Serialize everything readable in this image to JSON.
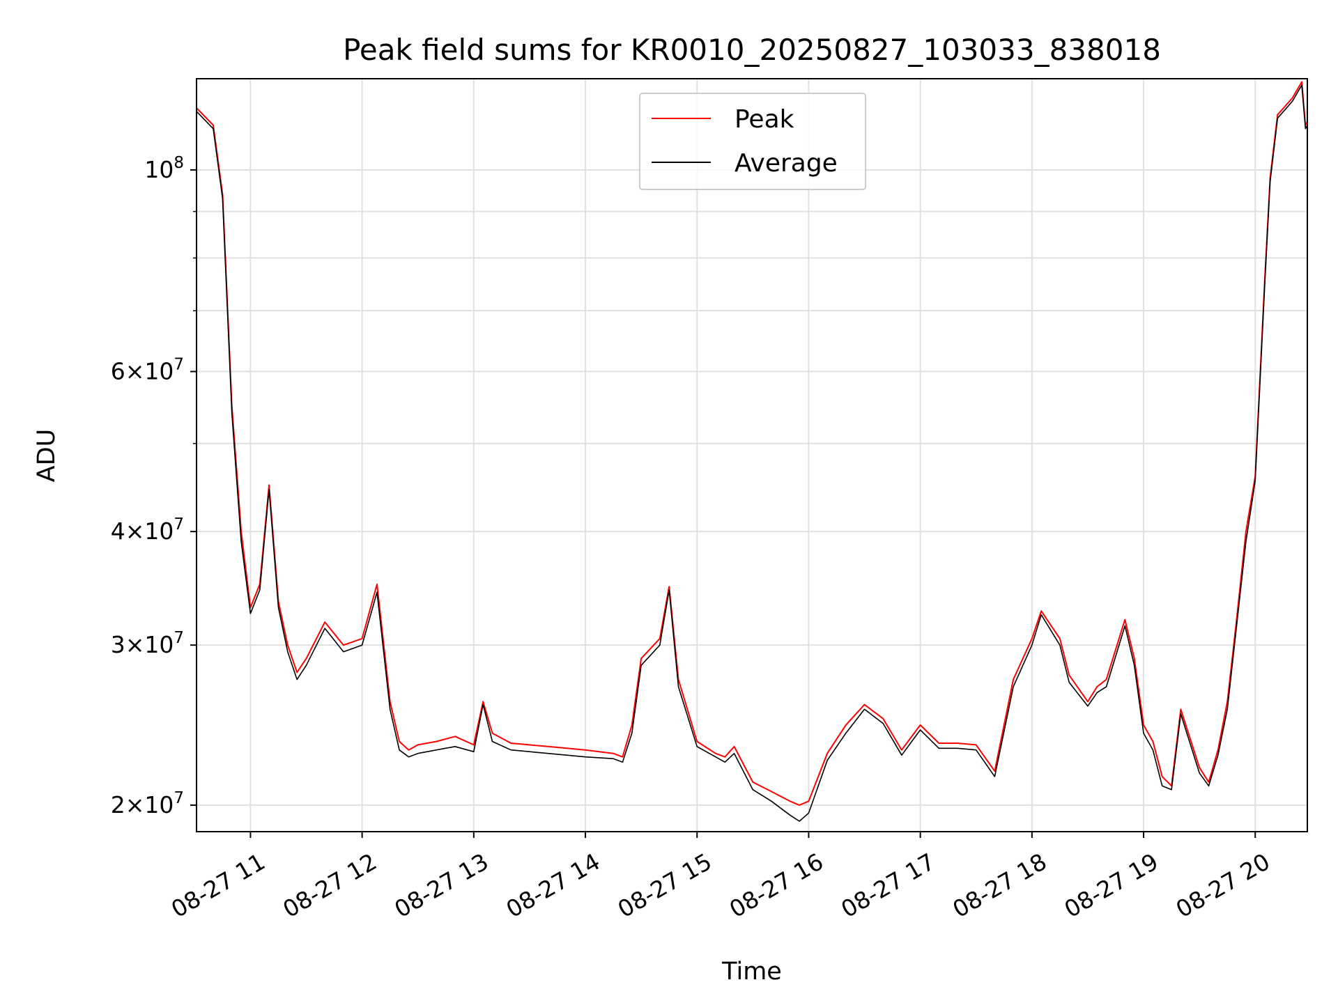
{
  "chart_data": {
    "type": "line",
    "title": "Peak field sums for KR0010_20250827_103033_838018",
    "xlabel": "Time",
    "ylabel": "ADU",
    "yscale": "log",
    "xlim": [
      "2025-08-27 10:31",
      "2025-08-27 20:28"
    ],
    "ylim": [
      18700000,
      126000000
    ],
    "grid": true,
    "legend_position": "top-center",
    "x_ticks": [
      "2025-08-27 11:00",
      "2025-08-27 12:00",
      "2025-08-27 13:00",
      "2025-08-27 14:00",
      "2025-08-27 15:00",
      "2025-08-27 16:00",
      "2025-08-27 17:00",
      "2025-08-27 18:00",
      "2025-08-27 19:00",
      "2025-08-27 20:00"
    ],
    "x_tick_labels": [
      "08-27 11",
      "08-27 12",
      "08-27 13",
      "08-27 14",
      "08-27 15",
      "08-27 16",
      "08-27 17",
      "08-27 18",
      "08-27 19",
      "08-27 20"
    ],
    "y_ticks": [
      20000000,
      30000000,
      40000000,
      60000000,
      100000000
    ],
    "y_tick_labels": [
      {
        "mant": "2",
        "exp": "7"
      },
      {
        "mant": "3",
        "exp": "7"
      },
      {
        "mant": "4",
        "exp": "7"
      },
      {
        "mant": "6",
        "exp": "7"
      },
      {
        "mant": "",
        "exp": "8"
      }
    ],
    "y_minor_ticks": [
      50000000,
      70000000,
      80000000,
      90000000
    ],
    "times": [
      "2025-08-27 10:31",
      "2025-08-27 10:40",
      "2025-08-27 10:45",
      "2025-08-27 10:50",
      "2025-08-27 10:55",
      "2025-08-27 11:00",
      "2025-08-27 11:05",
      "2025-08-27 11:10",
      "2025-08-27 11:15",
      "2025-08-27 11:20",
      "2025-08-27 11:25",
      "2025-08-27 11:30",
      "2025-08-27 11:40",
      "2025-08-27 11:50",
      "2025-08-27 12:00",
      "2025-08-27 12:08",
      "2025-08-27 12:15",
      "2025-08-27 12:20",
      "2025-08-27 12:25",
      "2025-08-27 12:30",
      "2025-08-27 12:40",
      "2025-08-27 12:50",
      "2025-08-27 13:00",
      "2025-08-27 13:05",
      "2025-08-27 13:10",
      "2025-08-27 13:20",
      "2025-08-27 13:40",
      "2025-08-27 14:00",
      "2025-08-27 14:15",
      "2025-08-27 14:20",
      "2025-08-27 14:25",
      "2025-08-27 14:30",
      "2025-08-27 14:40",
      "2025-08-27 14:45",
      "2025-08-27 14:50",
      "2025-08-27 15:00",
      "2025-08-27 15:10",
      "2025-08-27 15:15",
      "2025-08-27 15:20",
      "2025-08-27 15:30",
      "2025-08-27 15:40",
      "2025-08-27 15:50",
      "2025-08-27 15:55",
      "2025-08-27 16:00",
      "2025-08-27 16:10",
      "2025-08-27 16:20",
      "2025-08-27 16:30",
      "2025-08-27 16:40",
      "2025-08-27 16:50",
      "2025-08-27 17:00",
      "2025-08-27 17:10",
      "2025-08-27 17:20",
      "2025-08-27 17:30",
      "2025-08-27 17:40",
      "2025-08-27 17:50",
      "2025-08-27 18:00",
      "2025-08-27 18:05",
      "2025-08-27 18:15",
      "2025-08-27 18:20",
      "2025-08-27 18:30",
      "2025-08-27 18:35",
      "2025-08-27 18:40",
      "2025-08-27 18:50",
      "2025-08-27 18:55",
      "2025-08-27 19:00",
      "2025-08-27 19:05",
      "2025-08-27 19:10",
      "2025-08-27 19:15",
      "2025-08-27 19:20",
      "2025-08-27 19:30",
      "2025-08-27 19:35",
      "2025-08-27 19:40",
      "2025-08-27 19:45",
      "2025-08-27 19:50",
      "2025-08-27 19:55",
      "2025-08-27 20:00",
      "2025-08-27 20:05",
      "2025-08-27 20:08",
      "2025-08-27 20:12",
      "2025-08-27 20:20",
      "2025-08-27 20:25",
      "2025-08-27 20:27",
      "2025-08-27 20:28"
    ],
    "series": [
      {
        "name": "Peak",
        "color": "#ff0000",
        "values": [
          117000000,
          112000000,
          94000000,
          55000000,
          40000000,
          33000000,
          35000000,
          45000000,
          33500000,
          30000000,
          28000000,
          29000000,
          31800000,
          30000000,
          30500000,
          35000000,
          26000000,
          23500000,
          23000000,
          23300000,
          23500000,
          23800000,
          23300000,
          26000000,
          24000000,
          23400000,
          23200000,
          23000000,
          22800000,
          22600000,
          24500000,
          29000000,
          30500000,
          34800000,
          27500000,
          23500000,
          22800000,
          22600000,
          23200000,
          21200000,
          20700000,
          20200000,
          20000000,
          20200000,
          22800000,
          24500000,
          25800000,
          24900000,
          23000000,
          24500000,
          23400000,
          23400000,
          23300000,
          21800000,
          27500000,
          30500000,
          32700000,
          30500000,
          27800000,
          26000000,
          27000000,
          27500000,
          32000000,
          29000000,
          24500000,
          23500000,
          21500000,
          21000000,
          25500000,
          22000000,
          21200000,
          23000000,
          26000000,
          32000000,
          40000000,
          46000000,
          75000000,
          98000000,
          115000000,
          120000000,
          125000000,
          112000000,
          113000000
        ]
      },
      {
        "name": "Average",
        "color": "#000000",
        "values": [
          116000000,
          111000000,
          93000000,
          54000000,
          39000000,
          32500000,
          34500000,
          44500000,
          33000000,
          29500000,
          27500000,
          28500000,
          31300000,
          29500000,
          30000000,
          34300000,
          25500000,
          23000000,
          22600000,
          22800000,
          23000000,
          23200000,
          22900000,
          25800000,
          23500000,
          23000000,
          22800000,
          22600000,
          22500000,
          22300000,
          24000000,
          28500000,
          30000000,
          34500000,
          27000000,
          23200000,
          22600000,
          22300000,
          22800000,
          20800000,
          20200000,
          19500000,
          19200000,
          19600000,
          22400000,
          24000000,
          25500000,
          24600000,
          22700000,
          24200000,
          23100000,
          23100000,
          23000000,
          21500000,
          27000000,
          30000000,
          32400000,
          30000000,
          27300000,
          25700000,
          26600000,
          27000000,
          31500000,
          28500000,
          24000000,
          23000000,
          21000000,
          20800000,
          25200000,
          21700000,
          21000000,
          22700000,
          25500000,
          31500000,
          39000000,
          45500000,
          74000000,
          97000000,
          114000000,
          119000000,
          124000000,
          111000000,
          112000000
        ]
      }
    ]
  }
}
